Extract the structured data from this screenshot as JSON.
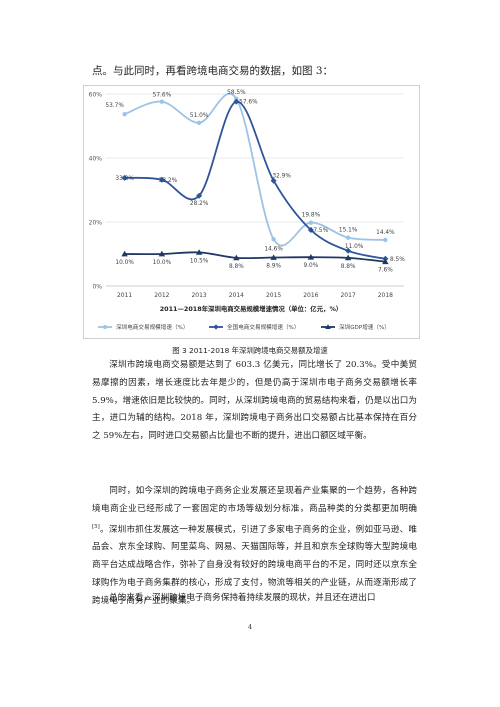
{
  "intro_text": "点。与此同时，再看跨境电商交易的数据，如图 3：",
  "chart_data": {
    "type": "line",
    "title": "2011—2018年深圳电商交易规模增速情况（单位：亿元，%）",
    "x": [
      "2011",
      "2012",
      "2013",
      "2014",
      "2015",
      "2016",
      "2017",
      "2018"
    ],
    "ylim": [
      0,
      60
    ],
    "yticks": [
      "0%",
      "20%",
      "40%",
      "60%"
    ],
    "ytick_values": [
      0,
      20,
      40,
      60
    ],
    "grid": true,
    "legend_position": "bottom",
    "series": [
      {
        "name": "深圳电商交易规模增速（%）",
        "color": "#9dc3e6",
        "marker": "circle",
        "values": [
          53.7,
          57.6,
          51.0,
          58.5,
          14.6,
          19.8,
          15.1,
          14.4
        ],
        "labels": [
          "53.7%",
          "57.6%",
          "51.0%",
          "58.5%",
          "14.6%",
          "19.8%",
          "15.1%",
          "14.4%"
        ]
      },
      {
        "name": "全国电商交易规模增速（%）",
        "color": "#2e5597",
        "marker": "diamond",
        "values": [
          33.8,
          33.2,
          28.2,
          57.6,
          32.9,
          17.5,
          11.0,
          8.5
        ],
        "labels": [
          "33.8%",
          "33.2%",
          "28.2%",
          "57.6%",
          "32.9%",
          "17.5%",
          "11.0%",
          "8.5%"
        ]
      },
      {
        "name": "深圳GDP增速（%）",
        "color": "#1f3864",
        "marker": "triangle",
        "values": [
          10.0,
          10.0,
          10.5,
          8.8,
          8.9,
          9.0,
          8.8,
          7.6
        ],
        "labels": [
          "10.0%",
          "10.0%",
          "10.5%",
          "8.8%",
          "8.9%",
          "9.0%",
          "8.8%",
          "7.6%"
        ]
      }
    ]
  },
  "caption": "图 3 2011-2018 年深圳跨境电商交易额及增速",
  "paragraphs": [
    {
      "text": "深圳市跨境电商交易额是达到了 603.3 亿美元，同比增长了 20.3%。受中美贸易摩擦的因素，增长速度比去年是少的，但是仍高于深圳市电子商务交易额增长率 5.9%，增速依旧是比较快的。同时，从深圳跨境电商的贸易结构来看，仍是以出口为主，进口为辅的结构。2018 年，深圳跨境电子商务出口交易额占比基本保持在百分之 59%左右，同时进口交易额占比量也不断的提升，进出口额区域平衡。",
      "footnote": ""
    },
    {
      "text": "同时，如今深圳的跨境电子商务企业发展还呈现着产业集聚的一个趋势，各种跨境电商企业已经形成了一套固定的市场等级划分标准，商品种类的分类都更加明确",
      "footnote": "[5]",
      "text_after": "。深圳市抓住发展这一种发展模式，引进了多家电子商务的企业，例如亚马逊、唯品会、京东全球购、阿里菜鸟、网易、天猫国际等，并且和京东全球购等大型跨境电商平台达成战略合作，弥补了自身没有较好的跨境电商平台的不足，同时还以京东全球购作为电子商务集群的核心，形成了支付，物流等相关的产业链，从而逐渐形成了跨境电子商务产业的聚集。"
    },
    {
      "text": "总的来看，深圳跨境电子商务保持着持续发展的现状，并且还在进出口",
      "footnote": ""
    }
  ],
  "page_number": "4"
}
